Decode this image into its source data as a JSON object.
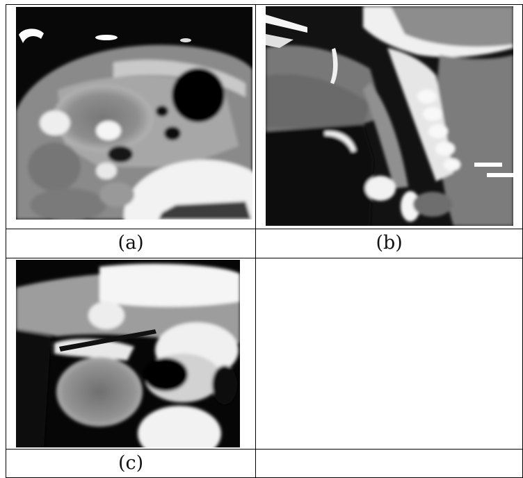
{
  "figure": {
    "panels": [
      {
        "id": "a",
        "caption": "(a)",
        "type": "CT axial slice"
      },
      {
        "id": "b",
        "caption": "(b)",
        "type": "CT sagittal reconstruction"
      },
      {
        "id": "c",
        "caption": "(c)",
        "type": "CT axial slice"
      }
    ]
  }
}
